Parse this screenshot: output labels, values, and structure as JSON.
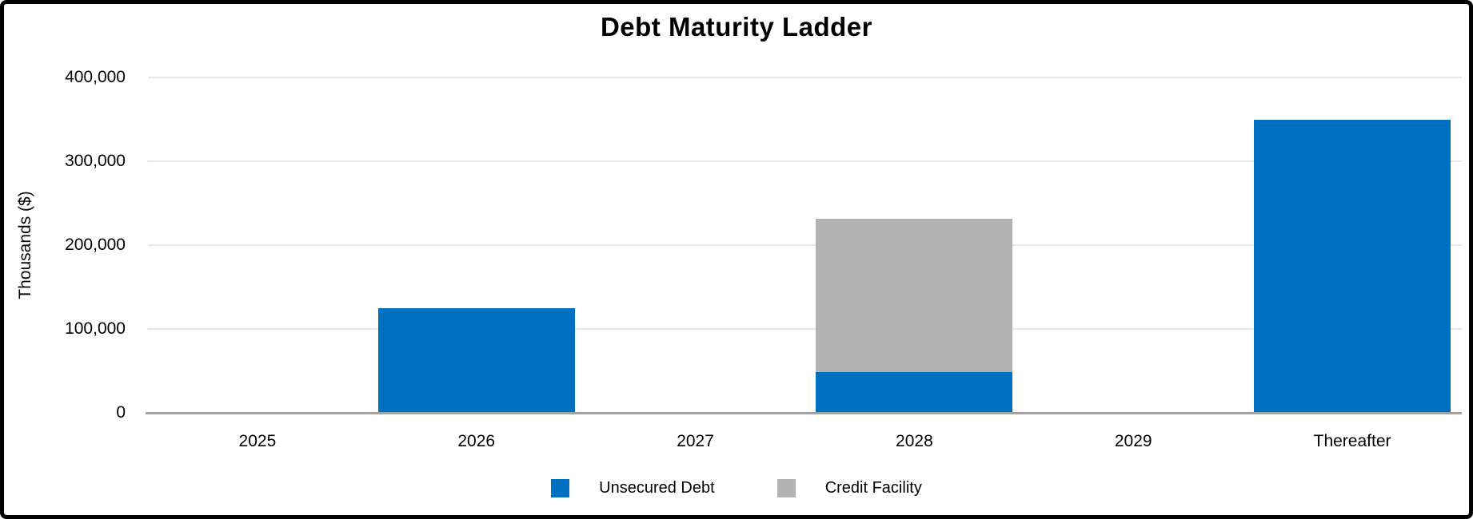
{
  "chart_data": {
    "type": "bar",
    "stacked": true,
    "title": "Debt Maturity Ladder",
    "xlabel": "",
    "ylabel": "Thousands ($)",
    "categories": [
      "2025",
      "2026",
      "2027",
      "2028",
      "2029",
      "Thereafter"
    ],
    "series": [
      {
        "name": "Unsecured Debt",
        "color": "#0070C0",
        "values": [
          0,
          125000,
          0,
          48500,
          0,
          350000
        ]
      },
      {
        "name": "Credit Facility",
        "color": "#B3B3B3",
        "values": [
          0,
          0,
          0,
          182500,
          0,
          0
        ]
      }
    ],
    "stack_totals": [
      0,
      125000,
      0,
      231000,
      0,
      350000
    ],
    "ylim": [
      0,
      400000
    ],
    "yticks": [
      {
        "value": 0,
        "label": "0"
      },
      {
        "value": 100000,
        "label": "100,000"
      },
      {
        "value": 200000,
        "label": "200,000"
      },
      {
        "value": 300000,
        "label": "300,000"
      },
      {
        "value": 400000,
        "label": "400,000"
      }
    ],
    "grid": "horizontal",
    "legend_position": "bottom"
  },
  "colors": {
    "background": "#FFFFFF",
    "frame_border": "#000000",
    "gridline": "#E9E9E9",
    "axis_line": "#A3A3A3",
    "text": "#000000"
  }
}
